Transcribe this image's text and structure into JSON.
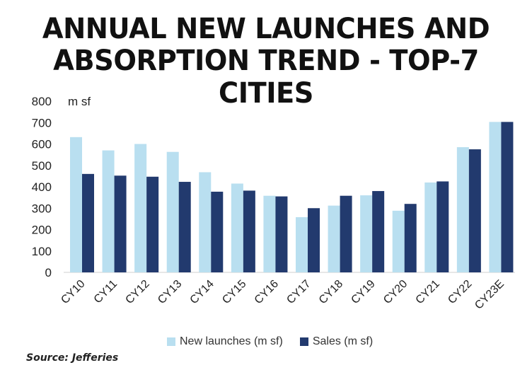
{
  "title_line1": "ANNUAL NEW LAUNCHES AND",
  "title_line2": "ABSORPTION TREND - TOP-7 CITIES",
  "source": "Source: Jefferies",
  "colors": {
    "launches": "#b9dff0",
    "sales": "#223a6e"
  },
  "chart_data": {
    "type": "bar",
    "title": "ANNUAL NEW LAUNCHES AND ABSORPTION TREND - TOP-7 CITIES",
    "ylabel": "m sf",
    "xlabel": "",
    "ylim": [
      0,
      800
    ],
    "yticks": [
      0,
      100,
      200,
      300,
      400,
      500,
      600,
      700,
      800
    ],
    "categories": [
      "CY10",
      "CY11",
      "CY12",
      "CY13",
      "CY14",
      "CY15",
      "CY16",
      "CY17",
      "CY18",
      "CY19",
      "CY20",
      "CY21",
      "CY22",
      "CY23E"
    ],
    "series": [
      {
        "name": "New launches (m sf)",
        "values": [
          632,
          570,
          600,
          563,
          468,
          415,
          358,
          258,
          312,
          360,
          288,
          420,
          585,
          703
        ]
      },
      {
        "name": "Sales (m sf)",
        "values": [
          460,
          452,
          447,
          423,
          377,
          382,
          355,
          300,
          358,
          380,
          320,
          425,
          575,
          703
        ]
      }
    ],
    "grid": false,
    "legend_position": "bottom"
  }
}
